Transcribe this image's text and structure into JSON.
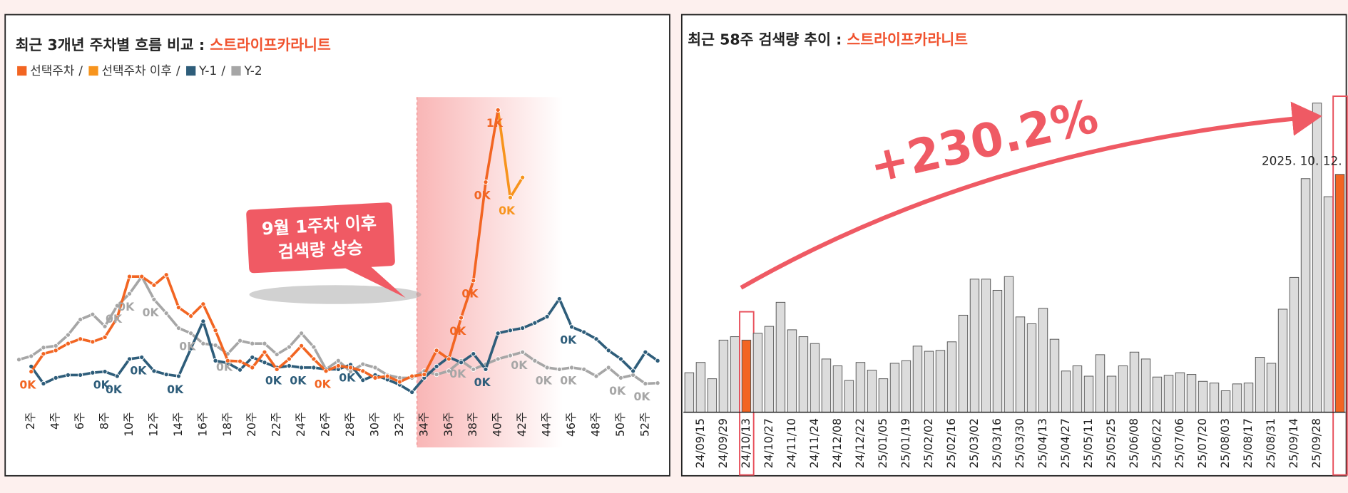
{
  "chart_data": [
    {
      "type": "line",
      "title": "최근 3개년 주차별 흐름 비교 :",
      "subtitle": "스트라이프카라니트",
      "legend_separator": "/",
      "callout": [
        "9월 1주차 이후",
        "검색량 상승"
      ],
      "categories": [
        null,
        "2주",
        null,
        "4주",
        null,
        "6주",
        null,
        "8주",
        null,
        "10주",
        null,
        "12주",
        null,
        "14주",
        null,
        "16주",
        null,
        "18주",
        null,
        "20주",
        null,
        "22주",
        null,
        "24주",
        null,
        "26주",
        null,
        "28주",
        null,
        "30주",
        null,
        "32주",
        null,
        "34주",
        null,
        "36주",
        null,
        "38주",
        null,
        "40주",
        null,
        "42주",
        null,
        "44주",
        null,
        "46주",
        null,
        "48주",
        null,
        "50주",
        null,
        "52주",
        null
      ],
      "ylim": [
        0,
        540
      ],
      "series": [
        {
          "name": "선택주차",
          "color": "#f26522",
          "values": [
            null,
            56,
            87,
            93,
            105,
            113,
            108,
            116,
            150,
            222,
            222,
            207,
            225,
            168,
            153,
            174,
            128,
            75,
            74,
            63,
            90,
            60,
            78,
            101,
            78,
            57,
            66,
            63,
            57,
            45,
            48,
            38,
            48,
            51,
            93,
            78,
            150,
            215,
            387,
            513,
            null,
            null,
            null,
            null,
            null,
            null,
            null,
            null,
            null,
            null,
            null,
            null,
            null
          ],
          "value_labels": [
            null,
            "0K",
            null,
            null,
            null,
            null,
            null,
            null,
            null,
            null,
            null,
            null,
            null,
            null,
            null,
            null,
            null,
            null,
            null,
            null,
            null,
            null,
            null,
            null,
            null,
            "0K",
            null,
            null,
            null,
            null,
            null,
            null,
            null,
            null,
            null,
            null,
            "0K",
            "0K",
            "0K",
            "1K",
            null,
            null,
            null,
            null,
            null,
            null,
            null,
            null,
            null,
            null,
            null,
            null,
            null
          ]
        },
        {
          "name": "선택주차 이후",
          "color": "#f7941d",
          "values": [
            null,
            null,
            null,
            null,
            null,
            null,
            null,
            null,
            null,
            null,
            null,
            null,
            null,
            null,
            null,
            null,
            null,
            null,
            null,
            null,
            null,
            null,
            null,
            null,
            null,
            null,
            null,
            null,
            null,
            null,
            null,
            null,
            null,
            null,
            null,
            null,
            null,
            null,
            null,
            513,
            360,
            395,
            null,
            null,
            null,
            null,
            null,
            null,
            null,
            null,
            null,
            null,
            null
          ],
          "value_labels": [
            null,
            null,
            null,
            null,
            null,
            null,
            null,
            null,
            null,
            null,
            null,
            null,
            null,
            null,
            null,
            null,
            null,
            null,
            null,
            null,
            null,
            null,
            null,
            null,
            null,
            null,
            null,
            null,
            null,
            null,
            null,
            null,
            null,
            null,
            null,
            null,
            null,
            null,
            null,
            null,
            "0K",
            null,
            null,
            null,
            null,
            null,
            null,
            null,
            null,
            null,
            null,
            null,
            null
          ]
        },
        {
          "name": "Y-1",
          "color": "#2e5d7a",
          "values": [
            null,
            65,
            35,
            45,
            50,
            50,
            54,
            56,
            48,
            78,
            81,
            57,
            51,
            48,
            96,
            144,
            75,
            71,
            59,
            81,
            72,
            63,
            66,
            63,
            63,
            60,
            60,
            68,
            41,
            50,
            42,
            33,
            20,
            45,
            65,
            81,
            72,
            87,
            60,
            123,
            128,
            132,
            141,
            152,
            183,
            134,
            125,
            113,
            93,
            78,
            57,
            90,
            75
          ],
          "value_labels": [
            null,
            null,
            null,
            null,
            null,
            null,
            null,
            "0K",
            "0K",
            null,
            "0K",
            null,
            null,
            "0K",
            null,
            null,
            null,
            null,
            null,
            null,
            null,
            "0K",
            null,
            "0K",
            null,
            null,
            null,
            "0K",
            null,
            null,
            null,
            null,
            null,
            null,
            null,
            null,
            null,
            null,
            "0K",
            null,
            null,
            null,
            null,
            null,
            null,
            "0K",
            null,
            null,
            null,
            null,
            null,
            null,
            null
          ]
        },
        {
          "name": "Y-2",
          "color": "#a6a6a6",
          "values": [
            77,
            83,
            98,
            101,
            120,
            147,
            156,
            135,
            171,
            192,
            222,
            182,
            158,
            132,
            123,
            105,
            102,
            87,
            110,
            105,
            105,
            86,
            99,
            123,
            99,
            60,
            75,
            56,
            69,
            63,
            50,
            45,
            45,
            57,
            51,
            57,
            75,
            60,
            69,
            78,
            84,
            90,
            75,
            63,
            60,
            63,
            60,
            48,
            63,
            45,
            50,
            35,
            36
          ],
          "value_labels": [
            null,
            null,
            null,
            null,
            null,
            null,
            null,
            null,
            "0K",
            "0K",
            null,
            "0K",
            null,
            null,
            "0K",
            null,
            null,
            "0K",
            null,
            null,
            null,
            null,
            null,
            null,
            null,
            null,
            null,
            null,
            null,
            null,
            null,
            null,
            null,
            null,
            null,
            null,
            "0K",
            null,
            null,
            null,
            null,
            "0K",
            null,
            "0K",
            null,
            "0K",
            null,
            null,
            null,
            "0K",
            null,
            "0K",
            null
          ]
        }
      ]
    },
    {
      "type": "bar",
      "title": "최근 58주 검색량 추이 :",
      "subtitle": "스트라이프카라니트",
      "change_label": "+230.2%",
      "date_label": "2025. 10. 12.",
      "categories": [
        null,
        "24/09/15",
        null,
        "24/09/29",
        null,
        "24/10/13",
        null,
        "24/10/27",
        null,
        "24/11/10",
        null,
        "24/11/24",
        null,
        "24/12/08",
        null,
        "24/12/22",
        null,
        "25/01/05",
        null,
        "25/01/19",
        null,
        "25/02/02",
        null,
        "25/02/16",
        null,
        "25/03/02",
        null,
        "25/03/16",
        null,
        "25/03/30",
        null,
        "25/04/13",
        null,
        "25/04/27",
        null,
        "25/05/11",
        null,
        "25/05/25",
        null,
        "25/06/08",
        null,
        "25/06/22",
        null,
        "25/07/06",
        null,
        "25/07/20",
        null,
        "25/08/03",
        null,
        "25/08/17",
        null,
        "25/08/31",
        null,
        "25/09/14",
        null,
        "25/09/28",
        null,
        null
      ],
      "values": [
        46,
        58,
        39,
        84,
        88,
        84,
        92,
        100,
        128,
        96,
        88,
        80,
        62,
        54,
        37,
        58,
        49,
        39,
        57,
        60,
        77,
        71,
        72,
        82,
        113,
        155,
        155,
        142,
        158,
        111,
        103,
        121,
        85,
        48,
        54,
        42,
        67,
        42,
        54,
        70,
        62,
        41,
        43,
        46,
        44,
        36,
        34,
        25,
        33,
        34,
        64,
        57,
        120,
        157,
        272,
        360,
        251,
        277
      ],
      "colors": [
        "#dcdcdc",
        "#dcdcdc",
        "#dcdcdc",
        "#dcdcdc",
        "#dcdcdc",
        "#f26522",
        "#dcdcdc",
        "#dcdcdc",
        "#dcdcdc",
        "#dcdcdc",
        "#dcdcdc",
        "#dcdcdc",
        "#dcdcdc",
        "#dcdcdc",
        "#dcdcdc",
        "#dcdcdc",
        "#dcdcdc",
        "#dcdcdc",
        "#dcdcdc",
        "#dcdcdc",
        "#dcdcdc",
        "#dcdcdc",
        "#dcdcdc",
        "#dcdcdc",
        "#dcdcdc",
        "#dcdcdc",
        "#dcdcdc",
        "#dcdcdc",
        "#dcdcdc",
        "#dcdcdc",
        "#dcdcdc",
        "#dcdcdc",
        "#dcdcdc",
        "#dcdcdc",
        "#dcdcdc",
        "#dcdcdc",
        "#dcdcdc",
        "#dcdcdc",
        "#dcdcdc",
        "#dcdcdc",
        "#dcdcdc",
        "#dcdcdc",
        "#dcdcdc",
        "#dcdcdc",
        "#dcdcdc",
        "#dcdcdc",
        "#dcdcdc",
        "#dcdcdc",
        "#dcdcdc",
        "#dcdcdc",
        "#dcdcdc",
        "#dcdcdc",
        "#dcdcdc",
        "#dcdcdc",
        "#dcdcdc",
        "#dcdcdc",
        "#dcdcdc",
        "#f26522"
      ],
      "ylim": [
        0,
        370
      ]
    }
  ]
}
